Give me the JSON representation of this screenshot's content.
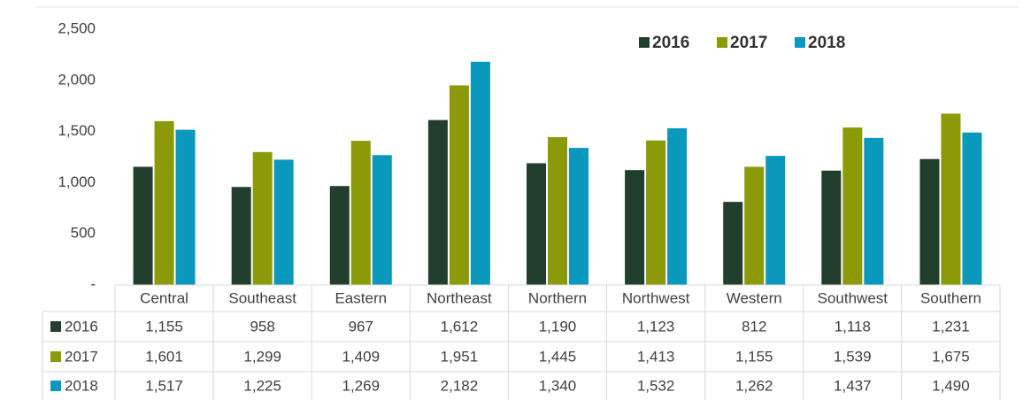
{
  "chart_data": {
    "type": "bar",
    "categories": [
      "Central",
      "Southeast",
      "Eastern",
      "Northeast",
      "Northern",
      "Northwest",
      "Western",
      "Southwest",
      "Southern"
    ],
    "series": [
      {
        "name": "2016",
        "color": "#213f2c",
        "values": [
          1155,
          958,
          967,
          1612,
          1190,
          1123,
          812,
          1118,
          1231
        ],
        "value_labels": [
          "1,155",
          "958",
          "967",
          "1,612",
          "1,190",
          "1,123",
          "812",
          "1,118",
          "1,231"
        ]
      },
      {
        "name": "2017",
        "color": "#8c9a0a",
        "values": [
          1601,
          1299,
          1409,
          1951,
          1445,
          1413,
          1155,
          1539,
          1675
        ],
        "value_labels": [
          "1,601",
          "1,299",
          "1,409",
          "1,951",
          "1,445",
          "1,413",
          "1,155",
          "1,539",
          "1,675"
        ]
      },
      {
        "name": "2018",
        "color": "#0b98bd",
        "values": [
          1517,
          1225,
          1269,
          2182,
          1340,
          1532,
          1262,
          1437,
          1490
        ],
        "value_labels": [
          "1,517",
          "1,225",
          "1,269",
          "2,182",
          "1,340",
          "1,532",
          "1,262",
          "1,437",
          "1,490"
        ]
      }
    ],
    "ylim": [
      0,
      2500
    ],
    "yticks": [
      {
        "value": 0,
        "label": "-"
      },
      500,
      {
        "value": 1000,
        "label": "1,000"
      },
      {
        "value": 1500,
        "label": "1,500"
      },
      {
        "value": 2000,
        "label": "2,000"
      },
      {
        "value": 2500,
        "label": "2,500"
      }
    ],
    "legend": "top-right",
    "data_table": true
  }
}
